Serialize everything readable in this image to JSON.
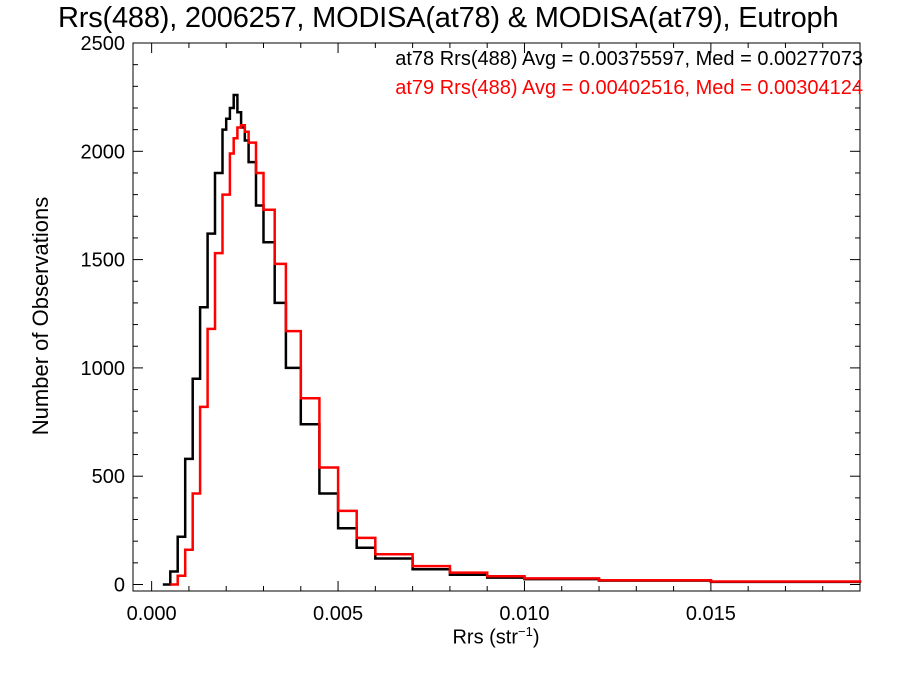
{
  "title": "Rrs(488), 2006257, MODISA(at78) & MODISA(at79), Eutroph",
  "legend": [
    {
      "text": "at78 Rrs(488) Avg = 0.00375597, Med = 0.00277073",
      "color": "#000000"
    },
    {
      "text": "at79 Rrs(488) Avg = 0.00402516, Med = 0.00304124",
      "color": "#ff0000"
    }
  ],
  "ylabel": "Number of Observations",
  "xlabel": "Rrs (str",
  "xlabel_sup": "−1",
  "chart_data": {
    "type": "line",
    "step": true,
    "title": "Rrs(488), 2006257, MODISA(at78) & MODISA(at79), Eutroph",
    "xlabel": "Rrs (str⁻¹)",
    "ylabel": "Number of Observations",
    "xlim": [
      -0.0005,
      0.019
    ],
    "ylim": [
      -30,
      2500
    ],
    "x_ticks": [
      0.0,
      0.005,
      0.01,
      0.015
    ],
    "x_tick_labels": [
      "0.000",
      "0.005",
      "0.010",
      "0.015"
    ],
    "y_ticks": [
      0,
      500,
      1000,
      1500,
      2000,
      2500
    ],
    "y_tick_labels": [
      "0",
      "500",
      "1000",
      "1500",
      "2000",
      "2500"
    ],
    "grid": false,
    "legend_position": "top-right",
    "series": [
      {
        "name": "at78",
        "color": "#000000",
        "x": [
          0.0003,
          0.0005,
          0.0007,
          0.0009,
          0.0011,
          0.0013,
          0.0015,
          0.0017,
          0.0019,
          0.002,
          0.0021,
          0.0022,
          0.0023,
          0.0024,
          0.0025,
          0.0026,
          0.0028,
          0.003,
          0.0033,
          0.0036,
          0.004,
          0.0045,
          0.005,
          0.0055,
          0.006,
          0.007,
          0.008,
          0.009,
          0.01,
          0.012,
          0.015,
          0.019
        ],
        "values": [
          0,
          60,
          220,
          580,
          950,
          1280,
          1620,
          1900,
          2100,
          2150,
          2200,
          2260,
          2180,
          2110,
          2050,
          1950,
          1750,
          1580,
          1300,
          1000,
          740,
          420,
          260,
          170,
          120,
          70,
          45,
          32,
          25,
          18,
          12,
          8
        ]
      },
      {
        "name": "at79",
        "color": "#ff0000",
        "x": [
          0.0005,
          0.0007,
          0.0009,
          0.0011,
          0.0013,
          0.0015,
          0.0017,
          0.0019,
          0.0021,
          0.0022,
          0.0023,
          0.0024,
          0.0025,
          0.0026,
          0.0028,
          0.003,
          0.0033,
          0.0036,
          0.004,
          0.0045,
          0.005,
          0.0055,
          0.006,
          0.007,
          0.008,
          0.009,
          0.01,
          0.012,
          0.015,
          0.019
        ],
        "values": [
          0,
          40,
          160,
          420,
          820,
          1180,
          1530,
          1800,
          1990,
          2060,
          2110,
          2120,
          2090,
          2040,
          1900,
          1730,
          1480,
          1170,
          860,
          540,
          340,
          215,
          140,
          85,
          55,
          38,
          28,
          20,
          14,
          10
        ]
      }
    ]
  }
}
